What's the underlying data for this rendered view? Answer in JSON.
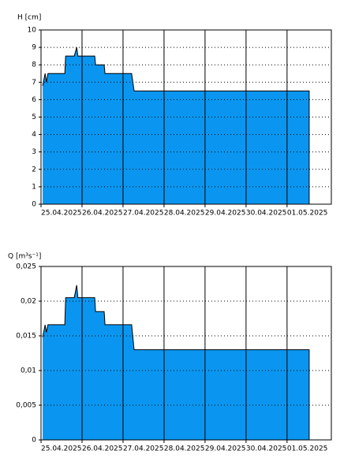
{
  "chart_data": [
    {
      "type": "area",
      "y_label": "H [cm]",
      "color": "#0a96f0",
      "x": [
        0.04,
        0.1,
        0.13,
        0.17,
        0.21,
        0.58,
        0.6,
        0.81,
        0.87,
        0.9,
        1.31,
        1.33,
        1.54,
        1.56,
        2.21,
        2.27,
        6.54
      ],
      "values": [
        6.8,
        7.5,
        7.0,
        7.5,
        7.5,
        7.5,
        8.5,
        8.5,
        9.0,
        8.5,
        8.5,
        8.0,
        8.0,
        7.5,
        7.5,
        6.5,
        6.5
      ],
      "xlim": [
        0,
        7.08
      ],
      "xticks": [
        {
          "value": 0,
          "label": "25.04.2025"
        },
        {
          "value": 1,
          "label": "26.04.2025"
        },
        {
          "value": 2,
          "label": "27.04.2025"
        },
        {
          "value": 3,
          "label": "28.04.2025"
        },
        {
          "value": 4,
          "label": "29.04.2025"
        },
        {
          "value": 5,
          "label": "30.04.2025"
        },
        {
          "value": 6,
          "label": "01.05.2025"
        }
      ],
      "ylim": [
        0,
        10
      ],
      "yticks": [
        0,
        1,
        2,
        3,
        4,
        5,
        6,
        7,
        8,
        9,
        10
      ],
      "grid": true
    },
    {
      "type": "area",
      "y_label": "Q [m³s⁻¹]",
      "color": "#0a96f0",
      "x": [
        0.04,
        0.1,
        0.13,
        0.17,
        0.21,
        0.58,
        0.6,
        0.81,
        0.87,
        0.9,
        1.31,
        1.33,
        1.54,
        1.56,
        2.21,
        2.27,
        6.54
      ],
      "values": [
        0.0148,
        0.0166,
        0.0155,
        0.0166,
        0.0166,
        0.0166,
        0.0205,
        0.0205,
        0.0223,
        0.0205,
        0.0205,
        0.0185,
        0.0185,
        0.0166,
        0.0166,
        0.013,
        0.013
      ],
      "xlim": [
        0,
        7.08
      ],
      "xticks": [
        {
          "value": 0,
          "label": "25.04.2025"
        },
        {
          "value": 1,
          "label": "26.04.2025"
        },
        {
          "value": 2,
          "label": "27.04.2025"
        },
        {
          "value": 3,
          "label": "28.04.2025"
        },
        {
          "value": 4,
          "label": "29.04.2025"
        },
        {
          "value": 5,
          "label": "30.04.2025"
        },
        {
          "value": 6,
          "label": "01.05.2025"
        }
      ],
      "ylim": [
        0,
        0.025
      ],
      "yticks": [
        0,
        {
          "value": 0.005,
          "label": "0,005"
        },
        {
          "value": 0.01,
          "label": "0,01"
        },
        {
          "value": 0.015,
          "label": "0,015"
        },
        {
          "value": 0.02,
          "label": "0,02"
        },
        {
          "value": 0.025,
          "label": "0,025"
        }
      ],
      "grid": true
    }
  ]
}
